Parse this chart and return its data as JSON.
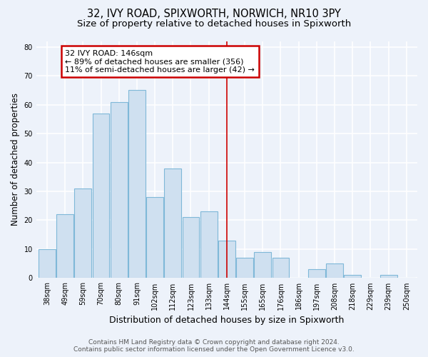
{
  "title": "32, IVY ROAD, SPIXWORTH, NORWICH, NR10 3PY",
  "subtitle": "Size of property relative to detached houses in Spixworth",
  "xlabel": "Distribution of detached houses by size in Spixworth",
  "ylabel": "Number of detached properties",
  "bar_labels": [
    "38sqm",
    "49sqm",
    "59sqm",
    "70sqm",
    "80sqm",
    "91sqm",
    "102sqm",
    "112sqm",
    "123sqm",
    "133sqm",
    "144sqm",
    "155sqm",
    "165sqm",
    "176sqm",
    "186sqm",
    "197sqm",
    "208sqm",
    "218sqm",
    "229sqm",
    "239sqm",
    "250sqm"
  ],
  "bar_values": [
    10,
    22,
    31,
    57,
    61,
    65,
    28,
    38,
    21,
    23,
    13,
    7,
    9,
    7,
    0,
    3,
    5,
    1,
    0,
    1,
    0
  ],
  "bar_color": "#cfe0f0",
  "bar_edge_color": "#7fb8d8",
  "vline_x_index": 10,
  "vline_color": "#cc0000",
  "annotation_title": "32 IVY ROAD: 146sqm",
  "annotation_line1": "← 89% of detached houses are smaller (356)",
  "annotation_line2": "11% of semi-detached houses are larger (42) →",
  "annotation_box_color": "#ffffff",
  "annotation_box_edge": "#cc0000",
  "ylim": [
    0,
    82
  ],
  "yticks": [
    0,
    10,
    20,
    30,
    40,
    50,
    60,
    70,
    80
  ],
  "footer_line1": "Contains HM Land Registry data © Crown copyright and database right 2024.",
  "footer_line2": "Contains public sector information licensed under the Open Government Licence v3.0.",
  "bg_color": "#edf2fa",
  "plot_bg_color": "#edf2fa",
  "grid_color": "#ffffff",
  "title_fontsize": 10.5,
  "subtitle_fontsize": 9.5,
  "xlabel_fontsize": 9,
  "ylabel_fontsize": 8.5,
  "tick_fontsize": 7,
  "footer_fontsize": 6.5,
  "annotation_fontsize": 8
}
